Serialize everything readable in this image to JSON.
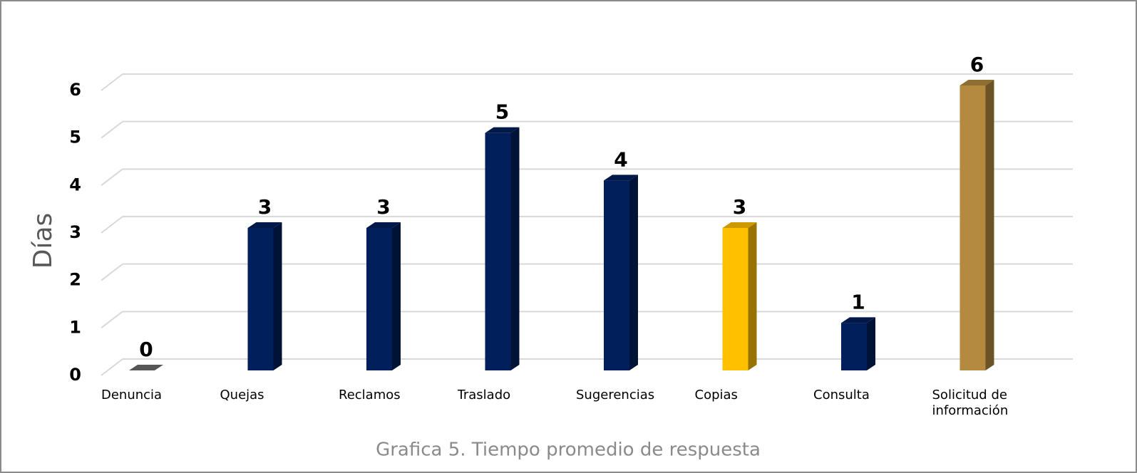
{
  "chart_data": {
    "type": "bar3d",
    "title": "Grafica 5. Tiempo promedio de respuesta",
    "ylabel": "Días",
    "categories": [
      "Denuncia",
      "Quejas",
      "Reclamos",
      "Traslado",
      "Sugerencias",
      "Copias",
      "Consulta",
      "Solicitud de información"
    ],
    "values": [
      0,
      3,
      3,
      5,
      4,
      3,
      1,
      6
    ],
    "colors": [
      "#6b6b6b",
      "#001f5b",
      "#001f5b",
      "#001f5b",
      "#001f5b",
      "#ffc000",
      "#001f5b",
      "#b38a40"
    ],
    "ylim": [
      0,
      6
    ],
    "yticks": [
      0,
      1,
      2,
      3,
      4,
      5,
      6
    ],
    "grid": true
  }
}
